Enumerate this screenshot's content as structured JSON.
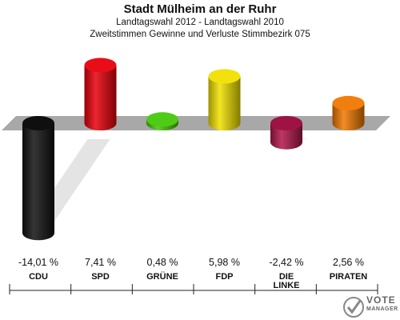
{
  "header": {
    "title": "Stadt Mülheim an der Ruhr",
    "subtitle1": "Landtagswahl 2012 - Landtagswahl 2010",
    "subtitle2": "Zweitstimmen Gewinne und Verluste Stimmbezirk 075"
  },
  "chart_data": {
    "type": "bar",
    "title": "Stadt Mülheim an der Ruhr",
    "subtitle": "Landtagswahl 2012 - Landtagswahl 2010 / Zweitstimmen Gewinne und Verluste Stimmbezirk 075",
    "categories": [
      "CDU",
      "SPD",
      "GRÜNE",
      "FDP",
      "DIE LINKE",
      "PIRATEN"
    ],
    "category_lines": [
      [
        "CDU"
      ],
      [
        "SPD"
      ],
      [
        "GRÜNE"
      ],
      [
        "FDP"
      ],
      [
        "DIE",
        "LINKE"
      ],
      [
        "PIRATEN"
      ]
    ],
    "values": [
      -14.01,
      7.41,
      0.48,
      5.98,
      -2.42,
      2.56
    ],
    "value_labels": [
      "-14,01 %",
      "7,41 %",
      "0,48 %",
      "5,98 %",
      "-2,42 %",
      "2,56 %"
    ],
    "colors": [
      "#111111",
      "#e8000b",
      "#46c80a",
      "#f0e000",
      "#b0154a",
      "#f07800"
    ],
    "unit": "%",
    "grid": false
  },
  "logo": {
    "line1": "VOTE",
    "line2": "MANAGER"
  }
}
